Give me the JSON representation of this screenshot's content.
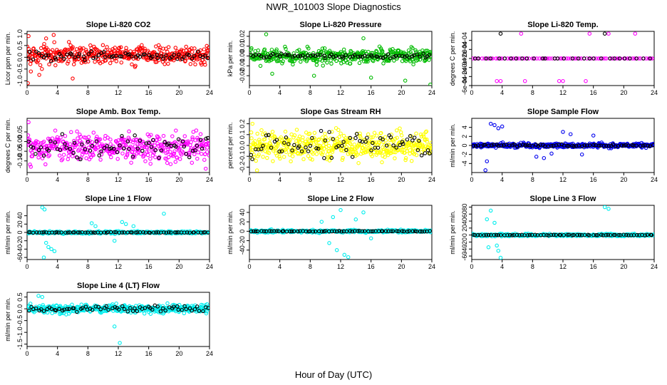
{
  "figure": {
    "title": "NWR_101003  Slope Diagnostics",
    "xlabel": "Hour of Day (UTC)"
  },
  "colors": {
    "red": "#ff0000",
    "green": "#00bb00",
    "magenta": "#ff00ff",
    "yellow": "#ffff00",
    "blue": "#0000ee",
    "cyan": "#00eeee",
    "black": "#000000"
  },
  "chart_data": [
    {
      "type": "scatter",
      "title": "Slope Li-820 CO2",
      "ylabel": "Licor ppm per min.",
      "xlim": [
        0,
        24
      ],
      "xticks": [
        0,
        4,
        8,
        12,
        16,
        20,
        24
      ],
      "ylim": [
        -1.2,
        1.1
      ],
      "yticks": [
        -1.0,
        -0.5,
        0.0,
        0.5,
        1.0
      ],
      "ytick_labels": [
        "-1.0",
        "-0.5",
        "0.0",
        "0.5",
        "1.0"
      ],
      "color": "red",
      "series": [
        {
          "name": "all",
          "color": "red",
          "n": 400,
          "x_range": [
            0,
            24
          ],
          "center": 0.1,
          "spread": 0.28,
          "outliers": [
            [
              0.2,
              0.9
            ],
            [
              0.5,
              -0.6
            ],
            [
              1.6,
              -0.75
            ],
            [
              2.5,
              0.8
            ],
            [
              3.5,
              0.95
            ],
            [
              6.0,
              -0.9
            ],
            [
              0.1,
              -1.1
            ],
            [
              5.5,
              0.65
            ]
          ]
        },
        {
          "name": "hourly",
          "color": "black",
          "n": 70,
          "x_range": [
            0,
            24
          ],
          "center": 0.05,
          "spread": 0.12,
          "outliers": []
        }
      ]
    },
    {
      "type": "scatter",
      "title": "Slope Li-820 Pressure",
      "ylabel": "kPa per min.",
      "xlim": [
        0,
        24
      ],
      "xticks": [
        0,
        4,
        8,
        12,
        16,
        20,
        24
      ],
      "ylim": [
        -0.03,
        0.025
      ],
      "yticks": [
        -0.02,
        -0.01,
        0.0,
        0.01,
        0.02
      ],
      "ytick_labels": [
        "-0.02",
        "-0.01",
        "0.00",
        "0.01",
        "0.02"
      ],
      "color": "green",
      "series": [
        {
          "name": "all",
          "color": "green",
          "n": 400,
          "x_range": [
            0,
            24
          ],
          "center": 0.0,
          "spread": 0.005,
          "outliers": [
            [
              2.2,
              0.022
            ],
            [
              3.0,
              -0.018
            ],
            [
              8.5,
              -0.02
            ],
            [
              16.0,
              -0.022
            ],
            [
              20.5,
              -0.025
            ],
            [
              23.8,
              -0.029
            ],
            [
              15.0,
              0.018
            ]
          ]
        },
        {
          "name": "hourly",
          "color": "black",
          "n": 70,
          "x_range": [
            0,
            24
          ],
          "center": 0.0,
          "spread": 0.0015,
          "outliers": []
        }
      ]
    },
    {
      "type": "scatter",
      "title": "Slope Li-820 Temp.",
      "ylabel": "degrees C per min.",
      "xlim": [
        0,
        24
      ],
      "xticks": [
        0,
        4,
        8,
        12,
        16,
        20,
        24
      ],
      "ylim": [
        -0.0006,
        0.0006
      ],
      "yticks": [
        -0.0006,
        -0.0004,
        -0.0002,
        0.0,
        0.0002,
        0.0004
      ],
      "ytick_labels": [
        "-6e-04",
        "-4e-04",
        "-2e-04",
        "0e+00",
        "2e-04",
        "4e-04"
      ],
      "color": "magenta",
      "series": [
        {
          "name": "all",
          "color": "magenta",
          "n": 80,
          "x_range": [
            0,
            24
          ],
          "center": 0.0,
          "spread": 0.0,
          "outliers": [
            [
              6.5,
              0.00055
            ],
            [
              15.5,
              0.00055
            ],
            [
              18.0,
              0.00055
            ],
            [
              21.5,
              0.00055
            ],
            [
              3.3,
              -0.0005
            ],
            [
              3.8,
              -0.0005
            ],
            [
              7.0,
              -0.0005
            ],
            [
              11.5,
              -0.0005
            ],
            [
              12.0,
              -0.0005
            ],
            [
              15.0,
              -0.0005
            ]
          ]
        },
        {
          "name": "hourly",
          "color": "black",
          "n": 30,
          "x_range": [
            0,
            24
          ],
          "center": 0.0,
          "spread": 0.0,
          "outliers": [
            [
              3.8,
              0.00055
            ],
            [
              17.5,
              0.00055
            ]
          ]
        }
      ]
    },
    {
      "type": "scatter",
      "title": "Slope Amb. Box Temp.",
      "ylabel": "degrees C per min.",
      "xlim": [
        0,
        24
      ],
      "xticks": [
        0,
        4,
        8,
        12,
        16,
        20,
        24
      ],
      "ylim": [
        -0.16,
        0.12
      ],
      "yticks": [
        -0.1,
        -0.05,
        0.0,
        0.05
      ],
      "ytick_labels": [
        "-0.10",
        "-0.05",
        "0.00",
        "0.05"
      ],
      "color": "magenta",
      "series": [
        {
          "name": "all",
          "color": "magenta",
          "n": 420,
          "x_range": [
            0,
            24
          ],
          "center": -0.03,
          "spread": 0.05,
          "outliers": [
            [
              0.2,
              0.1
            ],
            [
              0.5,
              -0.13
            ],
            [
              23.5,
              -0.14
            ]
          ]
        },
        {
          "name": "hourly",
          "color": "black",
          "n": 70,
          "x_range": [
            0,
            24
          ],
          "center": -0.03,
          "spread": 0.04,
          "outliers": []
        }
      ]
    },
    {
      "type": "scatter",
      "title": "Slope Gas Stream RH",
      "ylabel": "percent per min.",
      "xlim": [
        0,
        24
      ],
      "xticks": [
        0,
        4,
        8,
        12,
        16,
        20,
        24
      ],
      "ylim": [
        -0.25,
        0.25
      ],
      "yticks": [
        -0.2,
        -0.1,
        0.0,
        0.1,
        0.2
      ],
      "ytick_labels": [
        "-0.2",
        "-0.1",
        "0.0",
        "0.1",
        "0.2"
      ],
      "color": "yellow",
      "series": [
        {
          "name": "all",
          "color": "yellow",
          "n": 460,
          "x_range": [
            0,
            24
          ],
          "center": 0.0,
          "spread": 0.085,
          "outliers": [
            [
              1.0,
              -0.23
            ],
            [
              0.4,
              0.2
            ]
          ]
        },
        {
          "name": "hourly",
          "color": "black",
          "n": 70,
          "x_range": [
            0,
            24
          ],
          "center": 0.0,
          "spread": 0.08,
          "outliers": []
        }
      ]
    },
    {
      "type": "scatter",
      "title": "Slope Sample Flow",
      "ylabel": "ml/min per min.",
      "xlim": [
        0,
        24
      ],
      "xticks": [
        0,
        4,
        8,
        12,
        16,
        20,
        24
      ],
      "ylim": [
        -6,
        6
      ],
      "yticks": [
        -4,
        -2,
        0,
        2,
        4
      ],
      "ytick_labels": [
        "-4",
        "-2",
        "0",
        "2",
        "4"
      ],
      "color": "blue",
      "series": [
        {
          "name": "all",
          "color": "blue",
          "n": 380,
          "x_range": [
            0,
            24
          ],
          "center": 0.0,
          "spread": 0.35,
          "outliers": [
            [
              1.8,
              -5.5
            ],
            [
              2.0,
              -3.5
            ],
            [
              2.5,
              4.8
            ],
            [
              3.0,
              4.5
            ],
            [
              3.5,
              3.8
            ],
            [
              4.0,
              4.2
            ],
            [
              8.5,
              -2.5
            ],
            [
              9.5,
              -2.8
            ],
            [
              10.5,
              -1.8
            ],
            [
              12.0,
              3.0
            ],
            [
              13.0,
              2.5
            ],
            [
              14.5,
              -2.0
            ],
            [
              16.0,
              2.2
            ]
          ]
        },
        {
          "name": "hourly",
          "color": "black",
          "n": 70,
          "x_range": [
            0,
            24
          ],
          "center": 0.0,
          "spread": 0.15,
          "outliers": []
        }
      ]
    },
    {
      "type": "scatter",
      "title": "Slope Line 1 Flow",
      "ylabel": "ml/min per min.",
      "xlim": [
        0,
        24
      ],
      "xticks": [
        0,
        4,
        8,
        12,
        16,
        20,
        24
      ],
      "ylim": [
        -65,
        65
      ],
      "yticks": [
        -60,
        -40,
        -20,
        0,
        20,
        40
      ],
      "ytick_labels": [
        "-60",
        "-40",
        "-20",
        "0",
        "20",
        "40"
      ],
      "color": "cyan",
      "series": [
        {
          "name": "all",
          "color": "cyan",
          "n": 350,
          "x_range": [
            0,
            24
          ],
          "center": 0.0,
          "spread": 2.0,
          "outliers": [
            [
              2.0,
              60
            ],
            [
              2.3,
              55
            ],
            [
              2.5,
              -25
            ],
            [
              2.8,
              -35
            ],
            [
              3.2,
              -40
            ],
            [
              3.6,
              -45
            ],
            [
              2.2,
              -60
            ],
            [
              8.5,
              22
            ],
            [
              9.0,
              15
            ],
            [
              11.5,
              -20
            ],
            [
              12.5,
              25
            ],
            [
              13.0,
              20
            ],
            [
              14.0,
              15
            ],
            [
              18.0,
              45
            ]
          ]
        },
        {
          "name": "hourly",
          "color": "black",
          "n": 70,
          "x_range": [
            0,
            24
          ],
          "center": 0.0,
          "spread": 0.5,
          "outliers": []
        }
      ]
    },
    {
      "type": "scatter",
      "title": "Slope Line 2 Flow",
      "ylabel": "ml/min per min.",
      "xlim": [
        0,
        24
      ],
      "xticks": [
        0,
        4,
        8,
        12,
        16,
        20,
        24
      ],
      "ylim": [
        -60,
        55
      ],
      "yticks": [
        -40,
        -20,
        0,
        20,
        40
      ],
      "ytick_labels": [
        "-40",
        "-20",
        "0",
        "20",
        "40"
      ],
      "color": "cyan",
      "series": [
        {
          "name": "all",
          "color": "cyan",
          "n": 350,
          "x_range": [
            0,
            24
          ],
          "center": 0.0,
          "spread": 2.0,
          "outliers": [
            [
              9.5,
              20
            ],
            [
              10.5,
              -25
            ],
            [
              11.0,
              30
            ],
            [
              11.5,
              -40
            ],
            [
              12.0,
              45
            ],
            [
              12.5,
              -50
            ],
            [
              13.0,
              -55
            ],
            [
              14.0,
              25
            ],
            [
              15.0,
              40
            ],
            [
              16.0,
              -15
            ]
          ]
        },
        {
          "name": "hourly",
          "color": "black",
          "n": 70,
          "x_range": [
            0,
            24
          ],
          "center": 0.0,
          "spread": 0.5,
          "outliers": []
        }
      ]
    },
    {
      "type": "scatter",
      "title": "Slope Line 3 Flow",
      "ylabel": "ml/min per min.",
      "xlim": [
        0,
        24
      ],
      "xticks": [
        0,
        4,
        8,
        12,
        16,
        20,
        24
      ],
      "ylim": [
        -70,
        85
      ],
      "yticks": [
        -60,
        -40,
        -20,
        0,
        20,
        40,
        60,
        80
      ],
      "ytick_labels": [
        "-60",
        "-40",
        "-20",
        "0",
        "20",
        "40",
        "60",
        "80"
      ],
      "color": "cyan",
      "series": [
        {
          "name": "all",
          "color": "cyan",
          "n": 350,
          "x_range": [
            0,
            24
          ],
          "center": 0.0,
          "spread": 2.5,
          "outliers": [
            [
              2.0,
              45
            ],
            [
              2.5,
              70
            ],
            [
              3.0,
              35
            ],
            [
              3.3,
              -30
            ],
            [
              3.5,
              -45
            ],
            [
              3.8,
              -65
            ],
            [
              2.2,
              -35
            ],
            [
              17.5,
              80
            ],
            [
              18.0,
              75
            ]
          ]
        },
        {
          "name": "hourly",
          "color": "black",
          "n": 70,
          "x_range": [
            0,
            24
          ],
          "center": 0.0,
          "spread": 0.6,
          "outliers": []
        }
      ]
    },
    {
      "type": "scatter",
      "title": "Slope Line 4 (LT) Flow",
      "ylabel": "ml/min per min.",
      "xlim": [
        0,
        24
      ],
      "xticks": [
        0,
        4,
        8,
        12,
        16,
        20,
        24
      ],
      "ylim": [
        -1.6,
        0.7
      ],
      "yticks": [
        -1.5,
        -1.0,
        -0.5,
        0.0,
        0.5
      ],
      "ytick_labels": [
        "-1.5",
        "-1.0",
        "-0.5",
        "0.0",
        "0.5"
      ],
      "color": "cyan",
      "series": [
        {
          "name": "all",
          "color": "cyan",
          "n": 420,
          "x_range": [
            0,
            24
          ],
          "center": 0.0,
          "spread": 0.12,
          "outliers": [
            [
              12.2,
              -1.45
            ],
            [
              1.5,
              0.55
            ],
            [
              2.0,
              0.5
            ],
            [
              11.5,
              -0.75
            ]
          ]
        },
        {
          "name": "hourly",
          "color": "black",
          "n": 70,
          "x_range": [
            0,
            24
          ],
          "center": 0.0,
          "spread": 0.1,
          "outliers": []
        }
      ]
    }
  ]
}
